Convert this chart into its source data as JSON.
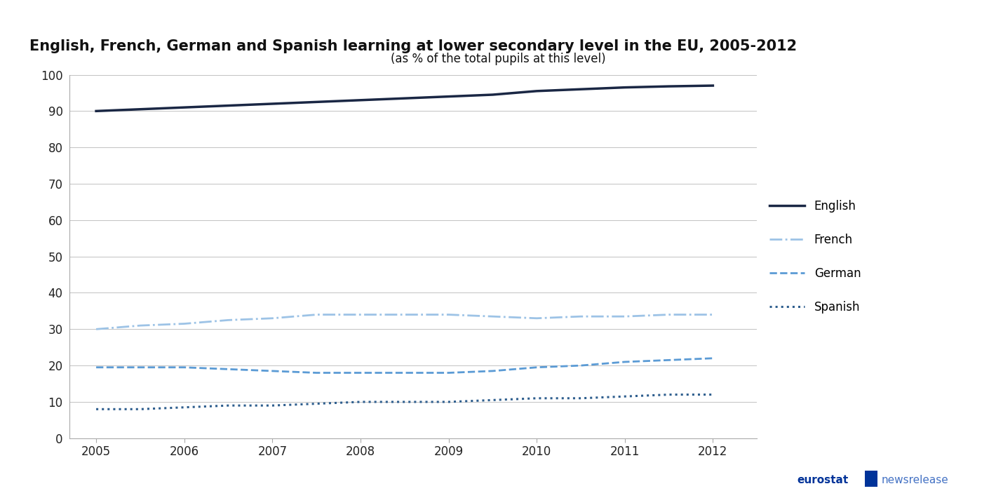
{
  "title": "English, French, German and Spanish learning at lower secondary level in the EU, 2005-2012",
  "subtitle": "(as % of the total pupils at this level)",
  "title_fontsize": 15,
  "subtitle_fontsize": 12,
  "ylim": [
    0,
    100
  ],
  "yticks": [
    0,
    10,
    20,
    30,
    40,
    50,
    60,
    70,
    80,
    90,
    100
  ],
  "background_color": "#ffffff",
  "plot_bg_color": "#ffffff",
  "series": [
    {
      "label": "English",
      "color": "#1a2744",
      "linestyle": "solid",
      "linewidth": 2.5,
      "x": [
        2005,
        2005.5,
        2006,
        2006.5,
        2007,
        2007.5,
        2008,
        2008.5,
        2009,
        2009.5,
        2010,
        2010.5,
        2011,
        2011.5,
        2012
      ],
      "y": [
        90,
        90.5,
        91,
        91.5,
        92,
        92.5,
        93,
        93.5,
        94,
        94.5,
        95.5,
        96,
        96.5,
        96.8,
        97
      ]
    },
    {
      "label": "French",
      "color": "#9DC3E6",
      "linestyle": "dashdot",
      "linewidth": 2.0,
      "x": [
        2005,
        2005.5,
        2006,
        2006.5,
        2007,
        2007.5,
        2008,
        2008.5,
        2009,
        2009.5,
        2010,
        2010.5,
        2011,
        2011.5,
        2012
      ],
      "y": [
        30,
        31,
        31.5,
        32.5,
        33,
        34,
        34,
        34,
        34,
        33.5,
        33,
        33.5,
        33.5,
        34,
        34
      ]
    },
    {
      "label": "German",
      "color": "#5B9BD5",
      "linestyle": "dashed",
      "linewidth": 2.0,
      "x": [
        2005,
        2005.5,
        2006,
        2006.5,
        2007,
        2007.5,
        2008,
        2008.5,
        2009,
        2009.5,
        2010,
        2010.5,
        2011,
        2011.5,
        2012
      ],
      "y": [
        19.5,
        19.5,
        19.5,
        19,
        18.5,
        18,
        18,
        18,
        18,
        18.5,
        19.5,
        20,
        21,
        21.5,
        22
      ]
    },
    {
      "label": "Spanish",
      "color": "#2E5E8E",
      "linestyle": "dotted",
      "linewidth": 2.2,
      "x": [
        2005,
        2005.5,
        2006,
        2006.5,
        2007,
        2007.5,
        2008,
        2008.5,
        2009,
        2009.5,
        2010,
        2010.5,
        2011,
        2011.5,
        2012
      ],
      "y": [
        8,
        8,
        8.5,
        9,
        9,
        9.5,
        10,
        10,
        10,
        10.5,
        11,
        11,
        11.5,
        12,
        12
      ]
    }
  ],
  "xticks": [
    2005,
    2006,
    2007,
    2008,
    2009,
    2010,
    2011,
    2012
  ],
  "xlim": [
    2004.7,
    2012.5
  ],
  "grid_color": "#AAAAAA",
  "grid_linewidth": 0.5,
  "legend_fontsize": 12,
  "axis_fontsize": 12,
  "eurostat_color": "#003399",
  "newsrelease_color": "#4472C4"
}
